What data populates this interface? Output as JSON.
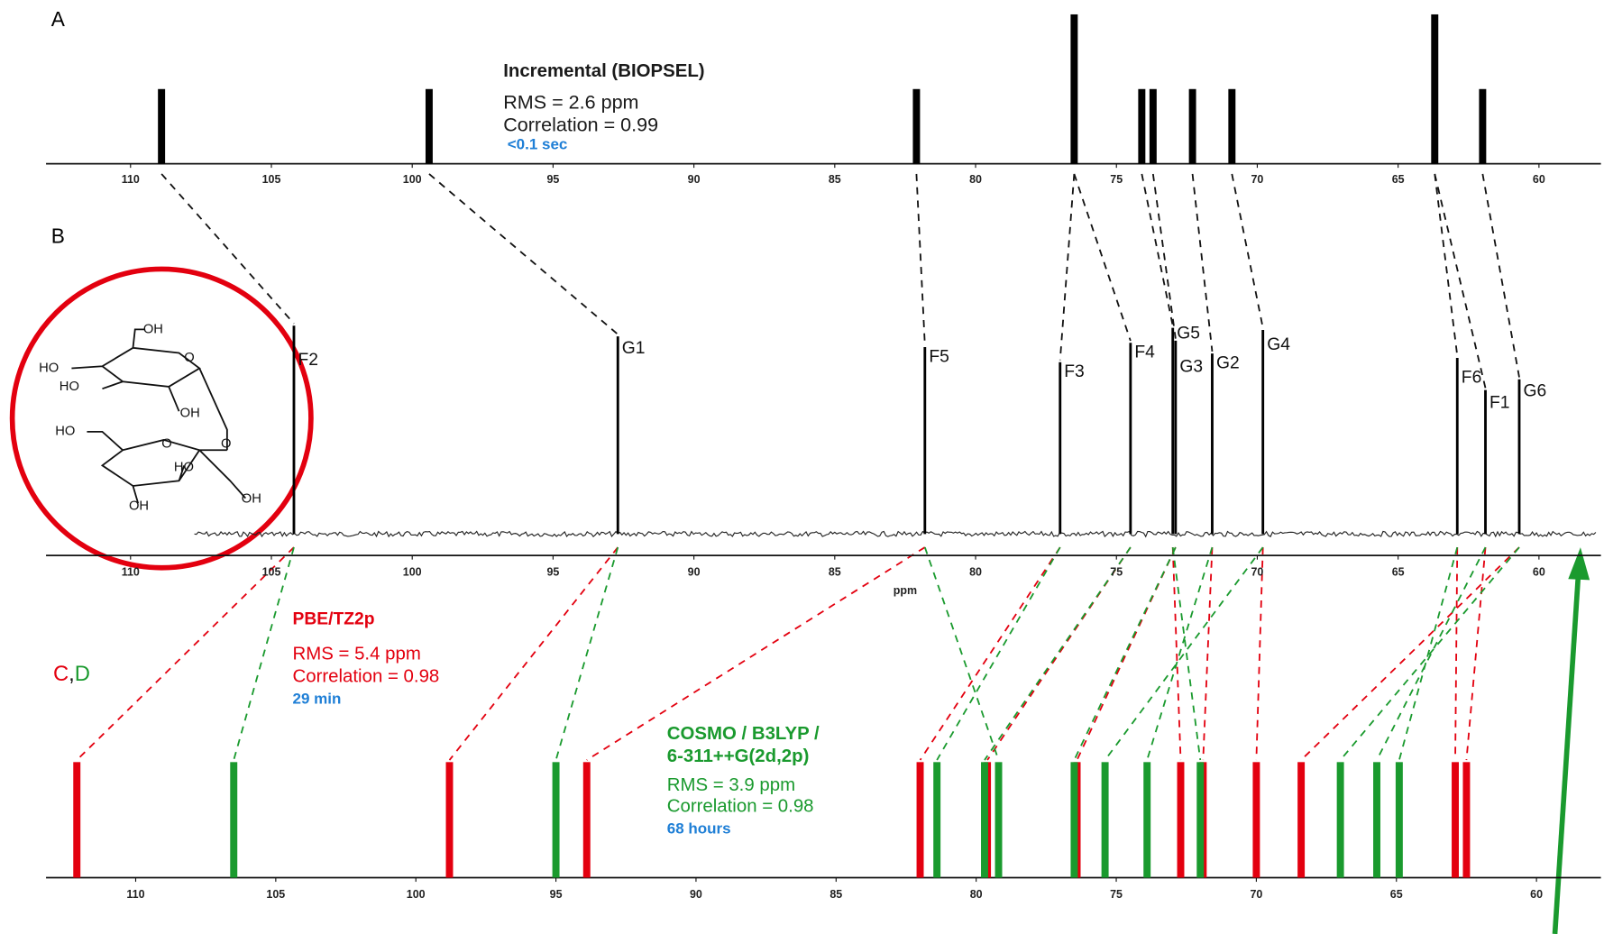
{
  "chart_data": [
    {
      "type": "stick",
      "label": "A",
      "annotations": [
        {
          "text": "Incremental (BIOPSEL)",
          "color": "#1a1a1a"
        },
        {
          "text": "RMS = 2.6 ppm",
          "color": "#1a1a1a"
        },
        {
          "text": "Correlation = 0.99",
          "color": "#1a1a1a"
        },
        {
          "text": "<0.1 sec",
          "color": "#1f7fd6"
        }
      ],
      "x": [
        108.9,
        99.4,
        82.1,
        76.5,
        74.1,
        73.7,
        72.3,
        70.9,
        63.7,
        62.0
      ],
      "values": [
        1,
        1,
        1,
        2,
        1,
        1,
        1,
        1,
        2,
        1
      ],
      "color": "#000000",
      "xlim": [
        113,
        57.8
      ],
      "xticks": [
        110,
        105,
        100,
        95,
        90,
        85,
        80,
        75,
        70,
        65,
        60
      ],
      "ylim": [
        0,
        2
      ]
    },
    {
      "type": "spectrum",
      "label": "B",
      "xlabel": "ppm",
      "x": [
        104.2,
        92.7,
        81.8,
        77.0,
        74.5,
        73.0,
        72.9,
        71.6,
        69.8,
        62.9,
        61.9,
        60.7
      ],
      "values": [
        97,
        92,
        87,
        80,
        89,
        96,
        90,
        84,
        95,
        82,
        67,
        72
      ],
      "peak_labels": [
        "F2",
        "G1",
        "F5",
        "F3",
        "F4",
        "G5",
        "G3",
        "G2",
        "G4",
        "F6",
        "F1",
        "G6"
      ],
      "color": "#000000",
      "xlim": [
        113,
        57.8
      ],
      "xticks": [
        110,
        105,
        100,
        95,
        90,
        85,
        80,
        75,
        70,
        65,
        60
      ],
      "ylim": [
        0,
        100
      ]
    },
    {
      "type": "stick",
      "legend_separator": ",",
      "series": [
        {
          "name": "C",
          "color": "#e3000f",
          "annotations": [
            {
              "text": "PBE/TZ2p",
              "color": "#e3000f"
            },
            {
              "text": "RMS = 5.4 ppm",
              "color": "#e3000f"
            },
            {
              "text": "Correlation = 0.98",
              "color": "#e3000f"
            },
            {
              "text": "29 min",
              "color": "#1f7fd6"
            }
          ],
          "x": [
            112.1,
            98.8,
            93.9,
            82.0,
            79.6,
            76.4,
            72.7,
            71.9,
            70.0,
            68.4,
            62.9,
            62.5
          ],
          "values": [
            1,
            1,
            1,
            1,
            1,
            1,
            1,
            1,
            1,
            1,
            1,
            1
          ]
        },
        {
          "name": "D",
          "color": "#1a9a2e",
          "annotations": [
            {
              "text": "COSMO / B3LYP /",
              "color": "#1a9a2e"
            },
            {
              "text": "6-311++G(2d,2p)",
              "color": "#1a9a2e"
            },
            {
              "text": "RMS = 3.9 ppm",
              "color": "#1a9a2e"
            },
            {
              "text": "Correlation = 0.98",
              "color": "#1a9a2e"
            },
            {
              "text": "68 hours",
              "color": "#1f7fd6"
            }
          ],
          "x": [
            106.5,
            95.0,
            81.4,
            79.7,
            79.2,
            76.5,
            75.4,
            73.9,
            72.0,
            67.0,
            65.7,
            64.9
          ],
          "values": [
            1,
            1,
            1,
            1,
            1,
            1,
            1,
            1,
            1,
            1,
            1,
            1
          ]
        }
      ],
      "xlim": [
        113.2,
        57.7
      ],
      "xticks": [
        110,
        105,
        100,
        95,
        90,
        85,
        80,
        75,
        70,
        65,
        60
      ],
      "ylim": [
        0,
        1
      ]
    }
  ],
  "molecule": {
    "labels": [
      "OH",
      "HO",
      "HO",
      "O",
      "OH",
      "O",
      "HO",
      "O",
      "HO",
      "OH",
      "OH"
    ]
  }
}
